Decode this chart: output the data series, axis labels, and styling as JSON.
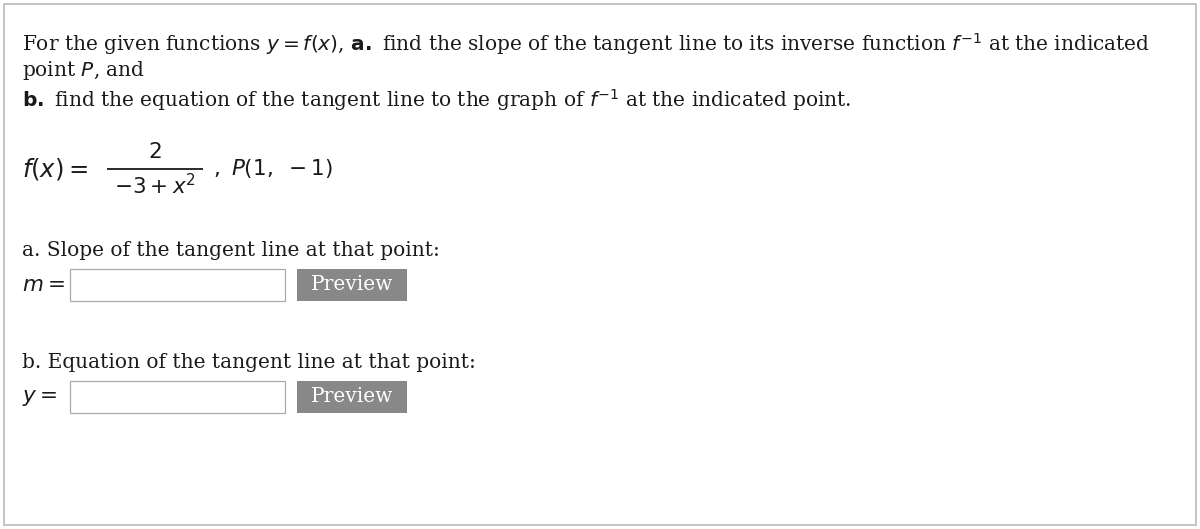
{
  "bg_color": "#ffffff",
  "border_color": "#bbbbbb",
  "text_color": "#1a1a1a",
  "button_color": "#888888",
  "button_text_color": "#ffffff",
  "input_box_color": "#ffffff",
  "input_box_border": "#aaaaaa",
  "preview_text": "Preview",
  "figsize": [
    12.0,
    5.29
  ],
  "dpi": 100,
  "fs_main": 14.5,
  "fs_func": 15.5
}
